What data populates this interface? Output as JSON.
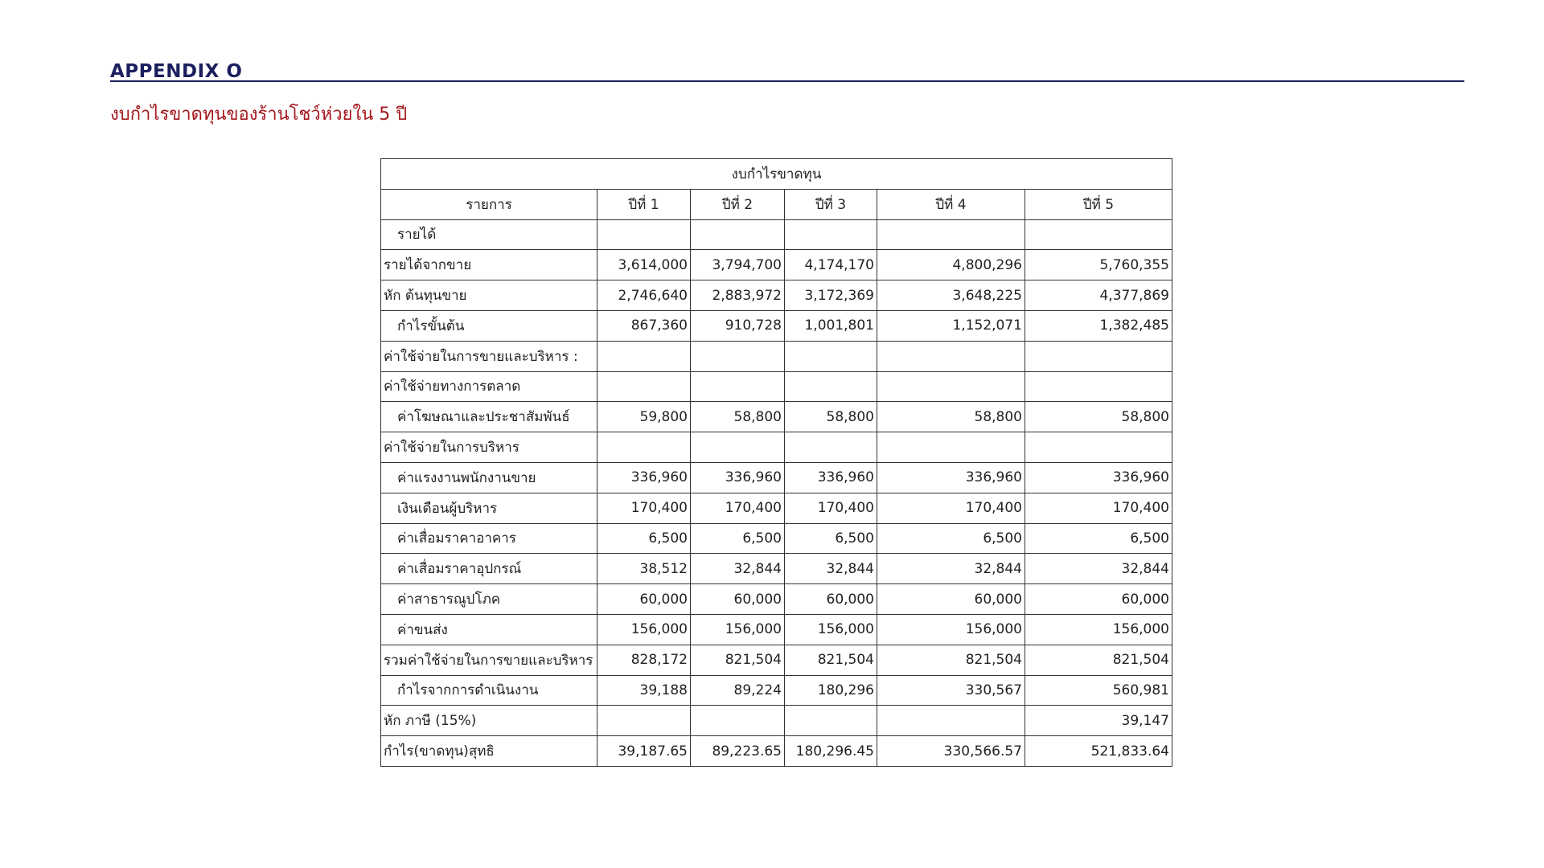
{
  "header": {
    "title": "APPENDIX O",
    "subtitle": "งบกำไรขาดทุนของร้านโชว์ห่วยใน 5 ปี"
  },
  "table": {
    "title": "งบกำไรขาดทุน",
    "columns": [
      "รายการ",
      "ปีที่ 1",
      "ปีที่ 2",
      "ปีที่ 3",
      "ปีที่ 4",
      "ปีที่ 5"
    ],
    "rows": [
      [
        "รายได้",
        null,
        null,
        null,
        null,
        null
      ],
      [
        "รายได้จากขาย",
        "3,614,000",
        "3,794,700",
        "4,174,170",
        "4,800,296",
        "5,760,355"
      ],
      [
        "หัก ต้นทุนขาย",
        "2,746,640",
        "2,883,972",
        "3,172,369",
        "3,648,225",
        "4,377,869"
      ],
      [
        "กำไรขั้นต้น",
        "867,360",
        "910,728",
        "1,001,801",
        "1,152,071",
        "1,382,485"
      ],
      [
        "ค่าใช้จ่ายในการขายและบริหาร :",
        null,
        null,
        null,
        null,
        null
      ],
      [
        "ค่าใช้จ่ายทางการตลาด",
        null,
        null,
        null,
        null,
        null
      ],
      [
        "ค่าโฆษณาและประชาสัมพันธ์",
        "59,800",
        "58,800",
        "58,800",
        "58,800",
        "58,800"
      ],
      [
        "ค่าใช้จ่ายในการบริหาร",
        null,
        null,
        null,
        null,
        null
      ],
      [
        "ค่าแรงงานพนักงานขาย",
        "336,960",
        "336,960",
        "336,960",
        "336,960",
        "336,960"
      ],
      [
        "เงินเดือนผู้บริหาร",
        "170,400",
        "170,400",
        "170,400",
        "170,400",
        "170,400"
      ],
      [
        "ค่าเสื่อมราคาอาคาร",
        "6,500",
        "6,500",
        "6,500",
        "6,500",
        "6,500"
      ],
      [
        "ค่าเสื่อมราคาอุปกรณ์",
        "38,512",
        "32,844",
        "32,844",
        "32,844",
        "32,844"
      ],
      [
        "ค่าสาธารณูปโภค",
        "60,000",
        "60,000",
        "60,000",
        "60,000",
        "60,000"
      ],
      [
        "ค่าขนส่ง",
        "156,000",
        "156,000",
        "156,000",
        "156,000",
        "156,000"
      ],
      [
        "รวมค่าใช้จ่ายในการขายและบริหาร",
        "828,172",
        "821,504",
        "821,504",
        "821,504",
        "821,504"
      ],
      [
        "กำไรจากการดำเนินงาน",
        "39,188",
        "89,224",
        "180,296",
        "330,567",
        "560,981"
      ],
      [
        "หัก ภาษี (15%)",
        null,
        null,
        null,
        null,
        "39,147"
      ],
      [
        "กำไร(ขาดทุน)สุทธิ",
        "39,187.65",
        "89,223.65",
        "180,296.45",
        "330,566.57",
        "521,833.64"
      ]
    ]
  }
}
